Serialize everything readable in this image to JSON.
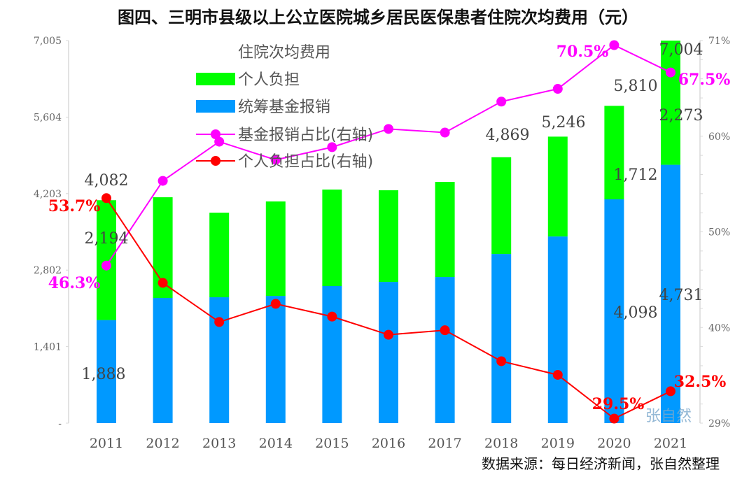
{
  "chart_data": {
    "type": "bar",
    "title": "图四、三明市县级以上公立医院城乡居民医保患者住院次均费用（元）",
    "categories": [
      "2011",
      "2012",
      "2013",
      "2014",
      "2015",
      "2016",
      "2017",
      "2018",
      "2019",
      "2020",
      "2021"
    ],
    "ylim": [
      0,
      7005
    ],
    "yticks": [
      "-",
      "1,401",
      "2,802",
      "4,203",
      "5,604",
      "7,005"
    ],
    "y2lim": [
      29,
      71
    ],
    "y2ticks": [
      "29%",
      "40%",
      "50%",
      "60%",
      "71%"
    ],
    "legend_title": "住院次均费用",
    "series": [
      {
        "name": "统筹基金报销",
        "kind": "bar",
        "color": "#0099ff",
        "values": [
          1888,
          2292,
          2305,
          2330,
          2510,
          2586,
          2676,
          3098,
          3418,
          4098,
          4731
        ]
      },
      {
        "name": "个人负担",
        "kind": "bar",
        "color": "#00ff00",
        "values": [
          2194,
          1844,
          1549,
          1729,
          1767,
          1678,
          1741,
          1771,
          1828,
          1712,
          2273
        ]
      },
      {
        "name": "基金报销占比(右轴)",
        "kind": "line",
        "color": "#ff00ff",
        "values": [
          46.3,
          55.6,
          59.9,
          57.9,
          59.3,
          61.3,
          60.9,
          64.3,
          65.7,
          70.5,
          67.5
        ]
      },
      {
        "name": "个人负担占比(右轴)",
        "kind": "line",
        "color": "#ff0000",
        "values": [
          53.7,
          44.4,
          40.1,
          42.1,
          40.7,
          38.7,
          39.2,
          35.8,
          34.3,
          29.5,
          32.5
        ]
      }
    ],
    "totals": [
      4082,
      4136,
      3854,
      4059,
      4277,
      4264,
      4417,
      4869,
      5246,
      5810,
      7004
    ],
    "annotations": {
      "totals": [
        {
          "i": 0,
          "text": "4,082"
        },
        {
          "i": 7,
          "text": "4,869"
        },
        {
          "i": 8,
          "text": "5,246"
        },
        {
          "i": 9,
          "text": "5,810"
        },
        {
          "i": 10,
          "text": "7,004"
        }
      ],
      "personal": [
        {
          "i": 0,
          "text": "2,194"
        },
        {
          "i": 9,
          "text": "1,712"
        },
        {
          "i": 10,
          "text": "2,273"
        }
      ],
      "fund": [
        {
          "i": 0,
          "text": "1,888"
        },
        {
          "i": 9,
          "text": "4,098"
        },
        {
          "i": 10,
          "text": "4,731"
        }
      ],
      "fund_ratio": [
        {
          "i": 0,
          "text": "46.3%"
        },
        {
          "i": 9,
          "text": "70.5%"
        },
        {
          "i": 10,
          "text": "67.5%"
        }
      ],
      "personal_ratio": [
        {
          "i": 0,
          "text": "53.7%"
        },
        {
          "i": 9,
          "text": "29.5%"
        },
        {
          "i": 10,
          "text": "32.5%"
        }
      ]
    },
    "watermark": "张自然",
    "source": "数据来源：每日经济新闻，张自然整理"
  }
}
